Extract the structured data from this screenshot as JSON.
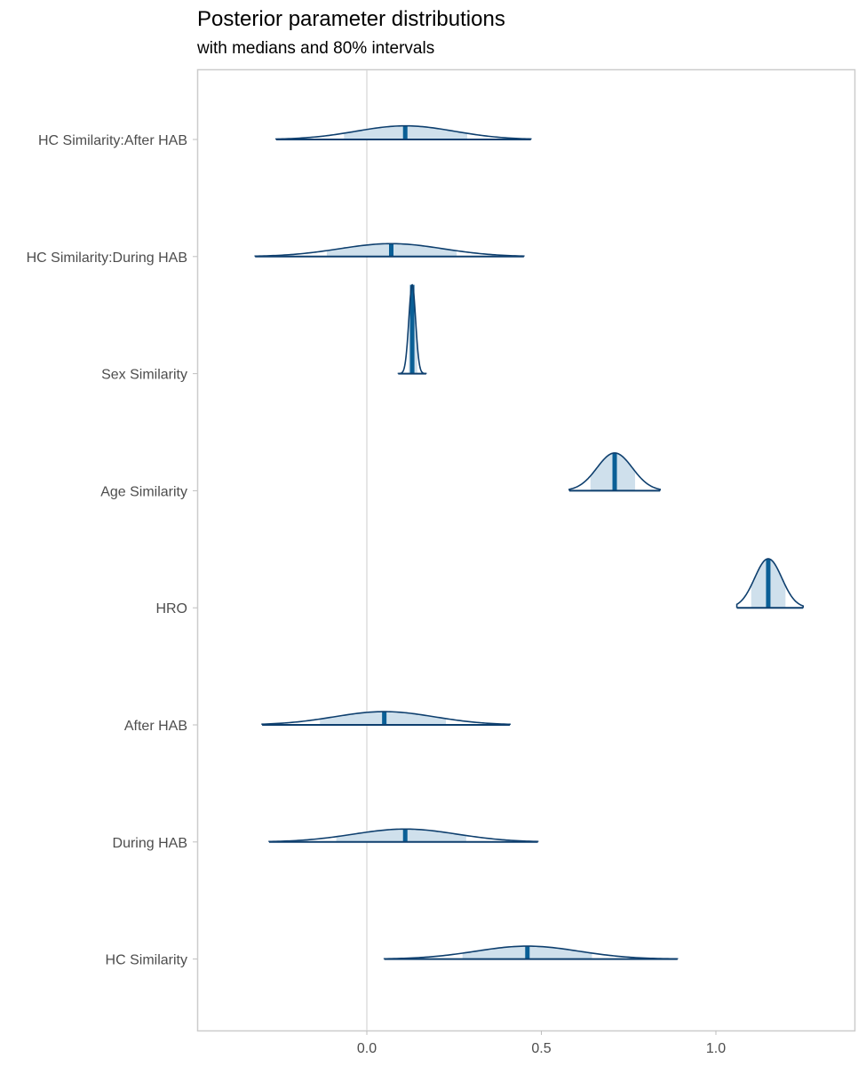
{
  "chart_data": {
    "type": "area",
    "title": "Posterior parameter distributions",
    "subtitle": "with medians and 80% intervals",
    "xlabel": "",
    "ylabel": "",
    "xlim": [
      -0.48,
      1.4
    ],
    "x_ticks": [
      "0.0",
      "0.5",
      "1.0"
    ],
    "x_tick_values": [
      0.0,
      0.5,
      1.0
    ],
    "reference_line": 0.0,
    "grid": false,
    "parameters": [
      {
        "label": "HC Similarity:After HAB",
        "median": 0.11,
        "inner": [
          -0.07,
          0.29
        ],
        "range": [
          -0.26,
          0.47
        ]
      },
      {
        "label": "HC Similarity:During HAB",
        "median": 0.07,
        "inner": [
          -0.12,
          0.26
        ],
        "range": [
          -0.32,
          0.45
        ]
      },
      {
        "label": "Sex Similarity",
        "median": 0.13,
        "inner": [
          0.12,
          0.145
        ],
        "range": [
          0.09,
          0.17
        ]
      },
      {
        "label": "Age Similarity",
        "median": 0.71,
        "inner": [
          0.64,
          0.77
        ],
        "range": [
          0.58,
          0.84
        ]
      },
      {
        "label": "HRO",
        "median": 1.15,
        "inner": [
          1.1,
          1.2
        ],
        "range": [
          1.06,
          1.25
        ]
      },
      {
        "label": "After HAB",
        "median": 0.05,
        "inner": [
          -0.14,
          0.23
        ],
        "range": [
          -0.3,
          0.41
        ]
      },
      {
        "label": "During HAB",
        "median": 0.11,
        "inner": [
          -0.09,
          0.29
        ],
        "range": [
          -0.28,
          0.49
        ]
      },
      {
        "label": "HC Similarity",
        "median": 0.46,
        "inner": [
          0.27,
          0.65
        ],
        "range": [
          0.05,
          0.89
        ]
      }
    ]
  },
  "colors": {
    "fill_light": "#cfe0ec",
    "outline": "#0e3f6e",
    "median": "#0a5f96",
    "panel_border": "#cccccc",
    "zero_line": "#dedede",
    "axis_text": "#4d4d4d"
  }
}
